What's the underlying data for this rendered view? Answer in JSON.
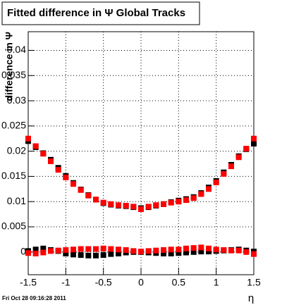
{
  "chart_data": {
    "type": "scatter",
    "title": "Fitted difference in Ψ   Global Tracks",
    "y_label": "difference in Ψ",
    "x_label": "η",
    "footer": "Fri Oct 28 09:16:28 2011",
    "x": [
      -1.5,
      -1.4,
      -1.3,
      -1.2,
      -1.1,
      -1.0,
      -0.9,
      -0.8,
      -0.7,
      -0.6,
      -0.5,
      -0.4,
      -0.3,
      -0.2,
      -0.1,
      0,
      0.1,
      0.2,
      0.3,
      0.4,
      0.5,
      0.6,
      0.7,
      0.8,
      0.9,
      1.0,
      1.1,
      1.2,
      1.3,
      1.4,
      1.5
    ],
    "series": [
      {
        "color": "#000000",
        "values": [
          0.022,
          0.0208,
          0.0196,
          0.0183,
          0.0167,
          0.0151,
          0.0137,
          0.0124,
          0.0113,
          0.0104,
          0.0097,
          0.0094,
          0.0092,
          0.0091,
          0.0089,
          0.0087,
          0.0089,
          0.0092,
          0.0095,
          0.0099,
          0.0102,
          0.0105,
          0.0109,
          0.0117,
          0.0128,
          0.0141,
          0.0158,
          0.0173,
          0.019,
          0.0204,
          0.0215
        ]
      },
      {
        "color": "#ff0000",
        "values": [
          0.0225,
          0.021,
          0.0195,
          0.018,
          0.0163,
          0.0148,
          0.0135,
          0.0123,
          0.0112,
          0.0104,
          0.0098,
          0.0095,
          0.0093,
          0.0092,
          0.009,
          0.0085,
          0.009,
          0.0093,
          0.0095,
          0.0098,
          0.01,
          0.0103,
          0.0107,
          0.0115,
          0.0125,
          0.0138,
          0.0155,
          0.017,
          0.0188,
          0.0205,
          0.0225
        ]
      },
      {
        "color": "#000000",
        "values": [
          0.0002,
          0.0005,
          0.0007,
          0.0004,
          0.0002,
          -0.0003,
          -0.0005,
          -0.0006,
          -0.0007,
          -0.0007,
          -0.0006,
          -0.0004,
          -0.0003,
          -0.0001,
          0,
          0,
          -0.0001,
          -0.0002,
          -0.0003,
          -0.0003,
          -0.0002,
          -0.0001,
          0,
          0.0001,
          0.0001,
          0.0002,
          0.0003,
          0.0004,
          0.0005,
          0.0003,
          0.0001
        ]
      },
      {
        "color": "#ff0000",
        "values": [
          -0.0002,
          -0.0003,
          -0.0001,
          0.0002,
          0.0003,
          0.0004,
          0.0005,
          0.0006,
          0.0006,
          0.0006,
          0.0007,
          0.0006,
          0.0005,
          0.0004,
          0.0002,
          0.0001,
          0.0002,
          0.0003,
          0.0004,
          0.0005,
          0.0005,
          0.0007,
          0.0008,
          0.0009,
          0.0007,
          0.0005,
          0.0004,
          0.0003,
          0.0003,
          0,
          -0.0004
        ]
      }
    ],
    "xlim": [
      -1.5,
      1.5
    ],
    "xticks": [
      -1.5,
      -1,
      -0.5,
      0,
      0.5,
      1,
      1.5
    ],
    "ylim": [
      -0.0045,
      0.0437
    ],
    "yticks": [
      0,
      0.005,
      0.01,
      0.015,
      0.02,
      0.025,
      0.03,
      0.035,
      0.04
    ],
    "grid": true
  }
}
